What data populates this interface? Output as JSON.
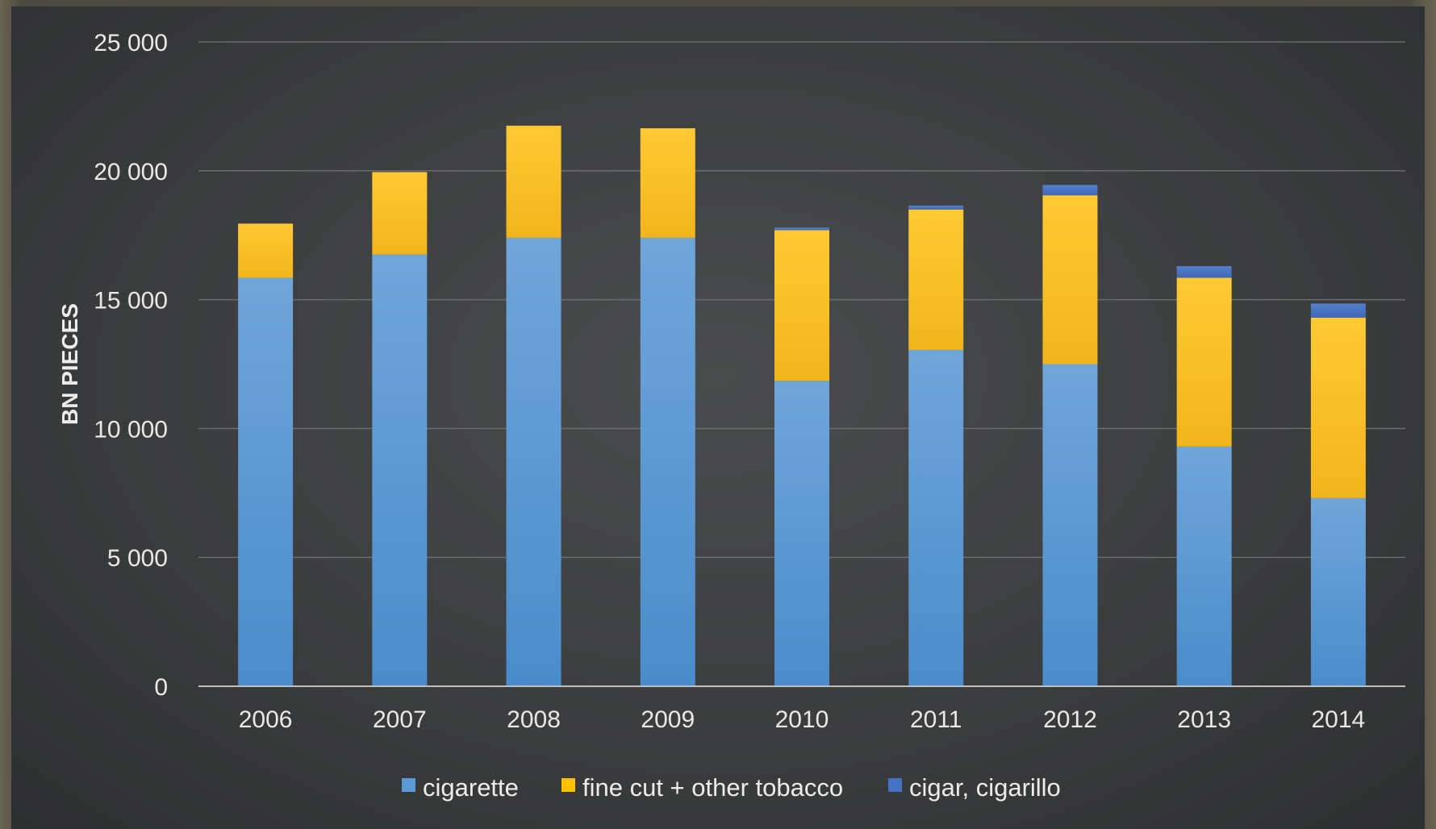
{
  "chart_data": {
    "type": "bar",
    "stacked": true,
    "categories": [
      "2006",
      "2007",
      "2008",
      "2009",
      "2010",
      "2011",
      "2012",
      "2013",
      "2014"
    ],
    "series": [
      {
        "name": "cigarette",
        "values": [
          15850,
          16750,
          17400,
          17400,
          11850,
          13050,
          12500,
          9300,
          7300
        ],
        "color": "#5b9bd5"
      },
      {
        "name": "fine cut + other tobacco",
        "values": [
          2100,
          3200,
          4350,
          4250,
          5850,
          5450,
          6550,
          6550,
          7000
        ],
        "color": "#ffc000"
      },
      {
        "name": "cigar, cigarillo",
        "values": [
          0,
          0,
          0,
          0,
          100,
          150,
          400,
          450,
          550
        ],
        "color": "#4472c4"
      }
    ],
    "yticks": [
      "25 000",
      "20 000",
      "15 000",
      "10 000",
      "5 000",
      "0"
    ],
    "ylabel": "BN PIECES",
    "xlabel": "",
    "title": "",
    "ylim": [
      0,
      25000
    ],
    "grid": true,
    "legend_position": "bottom"
  }
}
